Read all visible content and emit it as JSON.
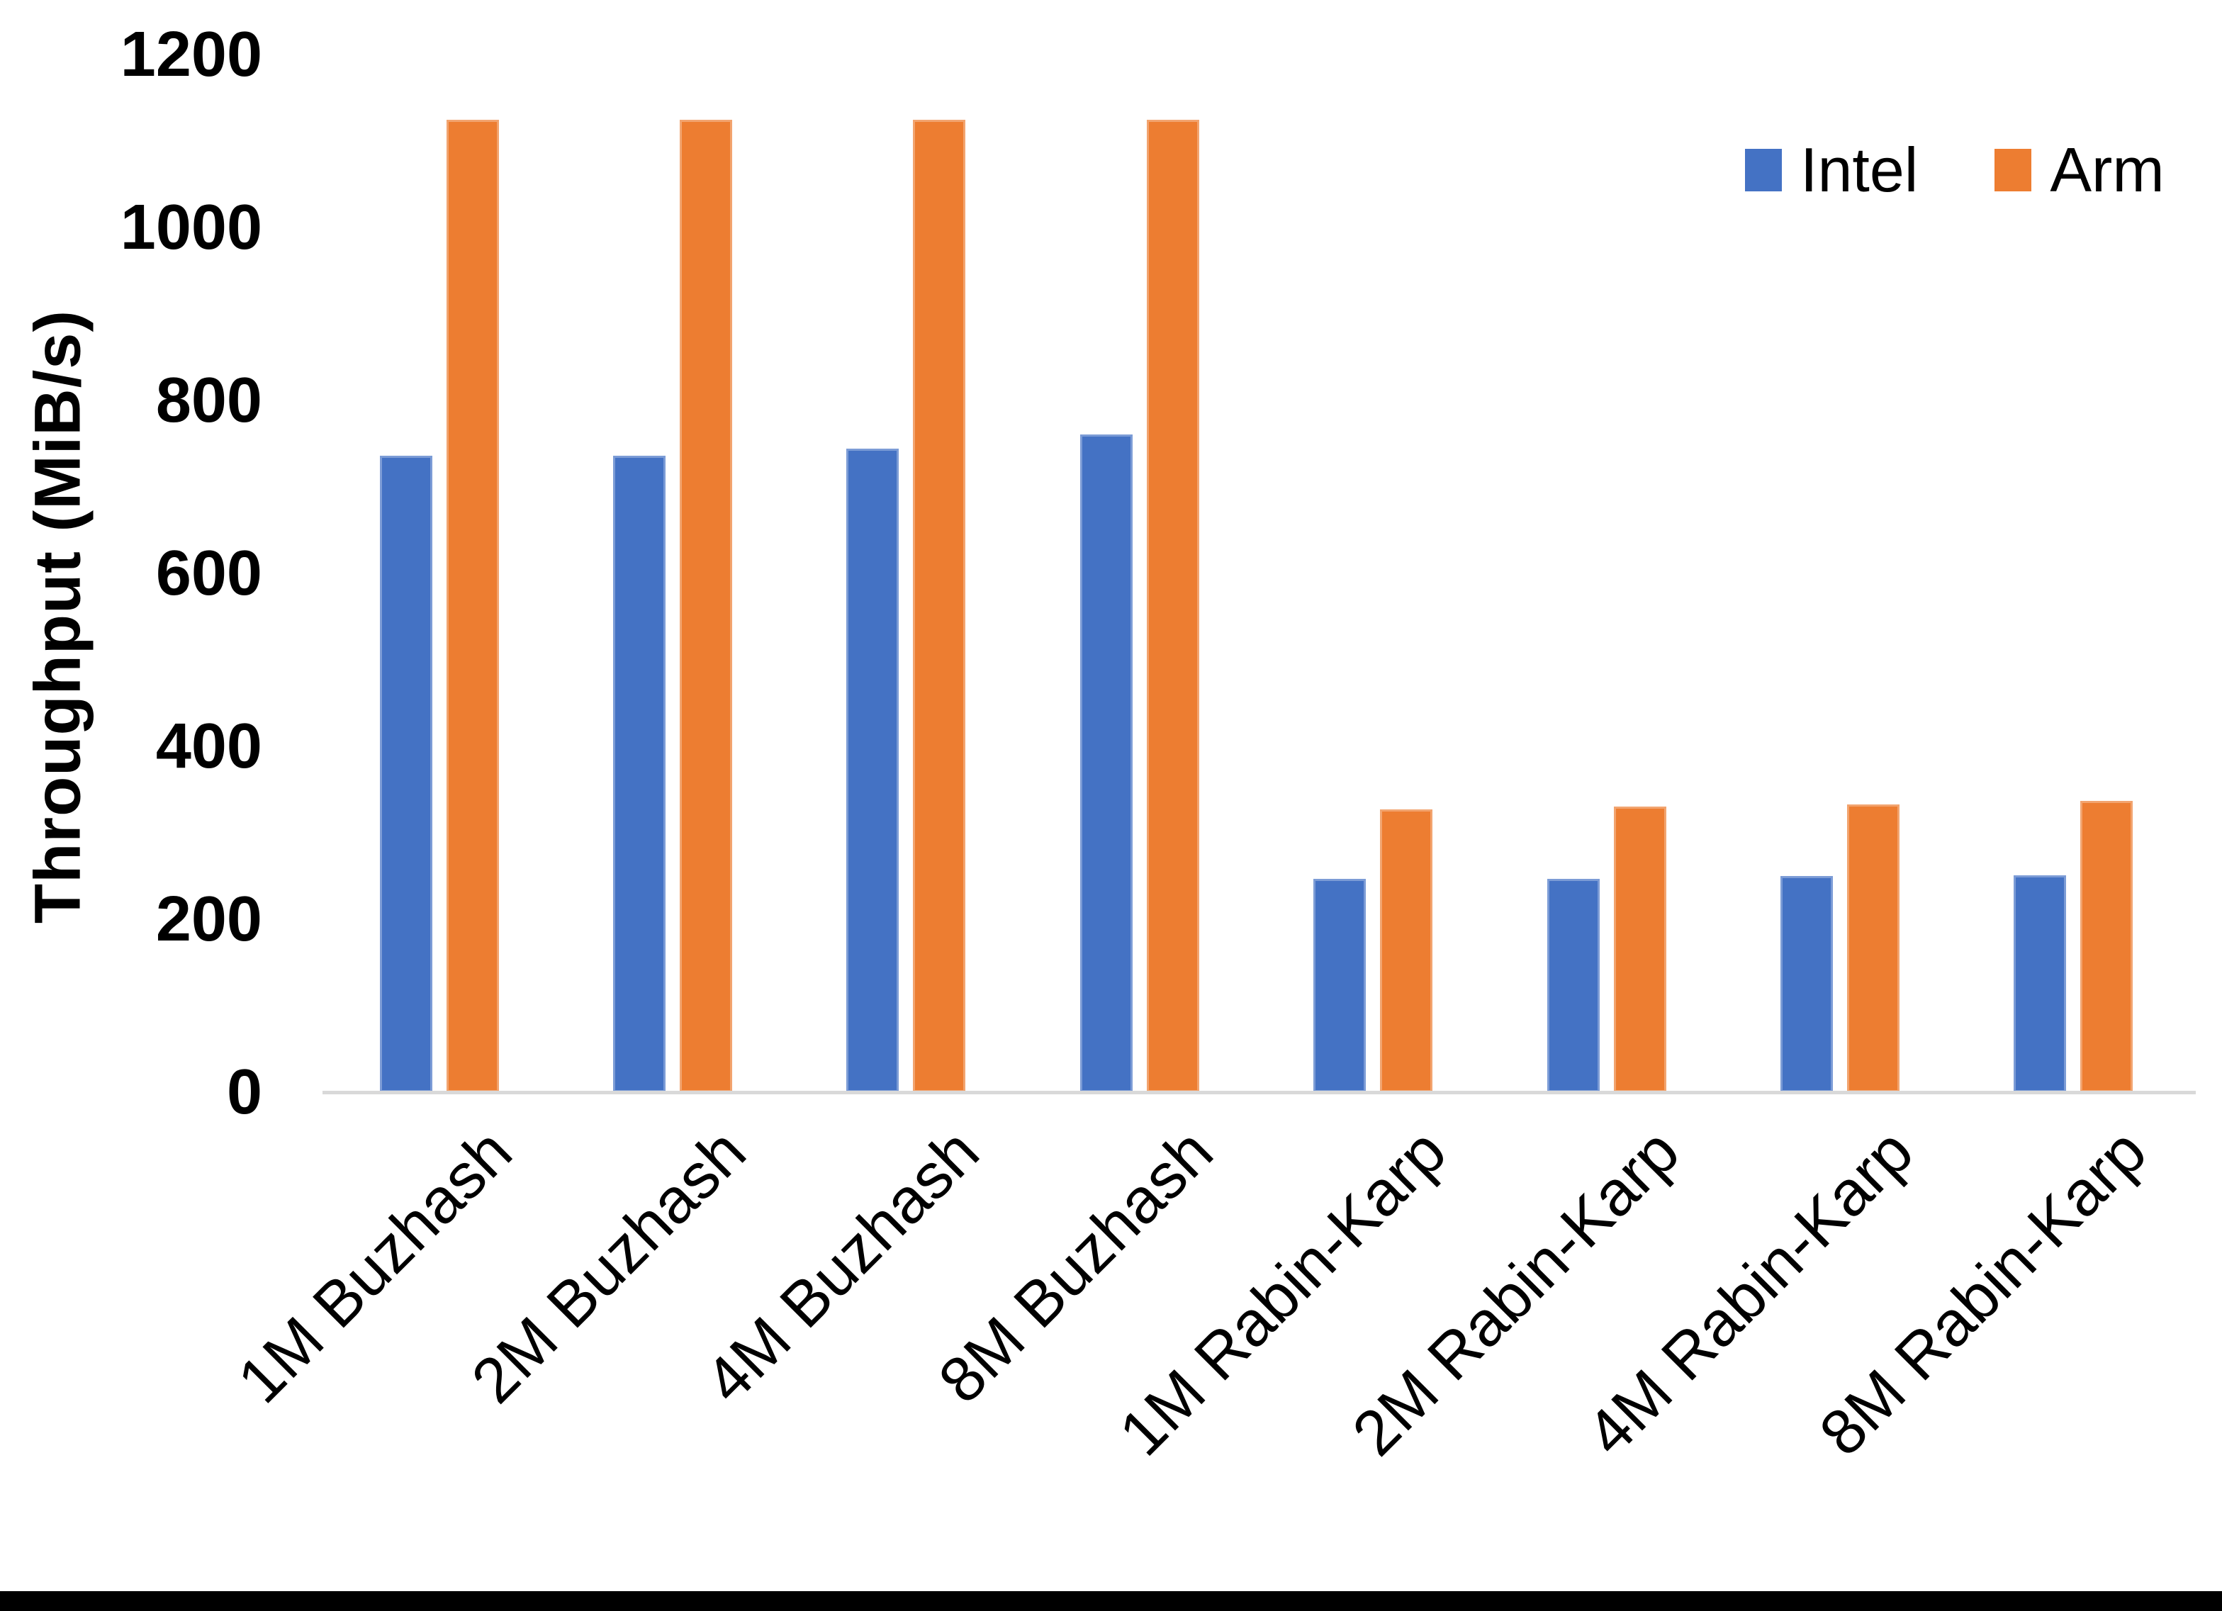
{
  "chart_data": {
    "type": "bar",
    "title": "",
    "categories": [
      "1M Buzhash",
      "2M Buzhash",
      "4M Buzhash",
      "8M Buzhash",
      "1M Rabin-Karp",
      "2M Rabin-Karp",
      "4M Rabin-Karp",
      "8M Rabin-Karp"
    ],
    "series": [
      {
        "name": "Intel",
        "color": "#4472C4",
        "values": [
          736,
          736,
          744,
          761,
          247,
          247,
          250,
          251
        ]
      },
      {
        "name": "Arm",
        "color": "#ED7D31",
        "values": [
          1125,
          1125,
          1125,
          1125,
          327,
          330,
          333,
          337
        ]
      }
    ],
    "xlabel": "",
    "ylabel": "Throughput (MiB/s)",
    "ylim": [
      0,
      1200
    ],
    "yticks": [
      0,
      200,
      400,
      600,
      800,
      1000,
      1200
    ],
    "grid": false,
    "legend_position": "top-right",
    "axis_line_color": "#d9d9d9",
    "text_color": "#000000"
  }
}
